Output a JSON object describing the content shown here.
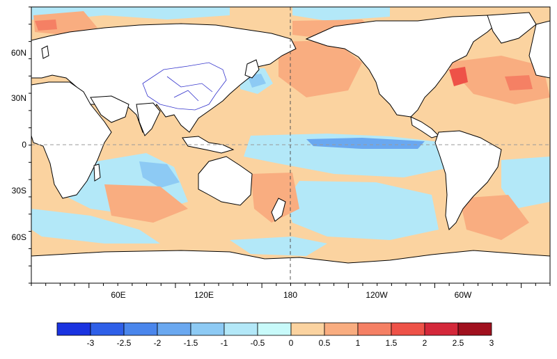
{
  "map": {
    "longitude_labels": [
      "60E",
      "120E",
      "180",
      "120W",
      "60W"
    ],
    "latitude_labels": [
      "60N",
      "30N",
      "0",
      "30S",
      "60S"
    ],
    "land_color": "#ffffff",
    "coastline_color": "#000000",
    "country_border_color": "#3333cc",
    "reference_lines": [
      "equator",
      "dateline"
    ]
  },
  "colorbar": {
    "tick_labels": [
      "-3",
      "-2.5",
      "-2",
      "-1.5",
      "-1",
      "-0.5",
      "0",
      "0.5",
      "1",
      "1.5",
      "2",
      "2.5",
      "3"
    ],
    "colors": [
      "#1a33e0",
      "#2e5fe8",
      "#4a86ec",
      "#6aa8f0",
      "#8dcaf4",
      "#b3e8f8",
      "#c8fafa",
      "#fbd3a0",
      "#f9ad80",
      "#f58064",
      "#ee5248",
      "#d4283a",
      "#a0101e"
    ]
  }
}
